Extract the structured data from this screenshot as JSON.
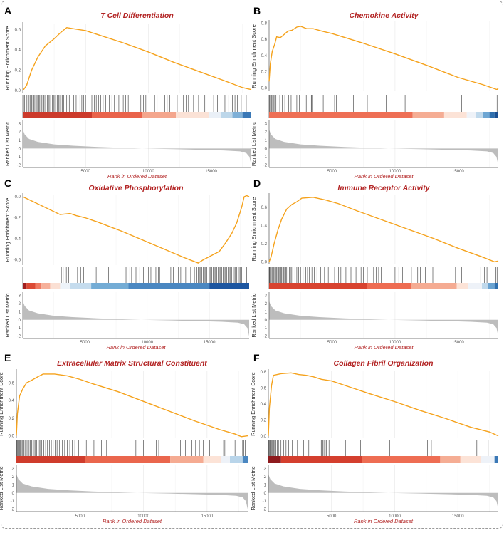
{
  "chart_data": [
    {
      "panel_label": "A",
      "type": "line",
      "title": "T Cell Differentiation",
      "xlabel": "Rank in Ordered Dataset",
      "ylabel": "Running Enrichment Score",
      "ylabel_metric": "Ranked List Metric",
      "xlim": [
        0,
        18200
      ],
      "xticks": [
        5000,
        10000,
        15000
      ],
      "ylim": [
        -0.02,
        0.66
      ],
      "yticks": [
        0.0,
        0.2,
        0.4,
        0.6
      ],
      "es_curve": [
        [
          0,
          0
        ],
        [
          300,
          0.05
        ],
        [
          700,
          0.2
        ],
        [
          1200,
          0.33
        ],
        [
          1800,
          0.44
        ],
        [
          2500,
          0.51
        ],
        [
          3000,
          0.57
        ],
        [
          3500,
          0.62
        ],
        [
          4000,
          0.61
        ],
        [
          5000,
          0.59
        ],
        [
          6000,
          0.55
        ],
        [
          8000,
          0.47
        ],
        [
          10000,
          0.38
        ],
        [
          12000,
          0.28
        ],
        [
          14000,
          0.19
        ],
        [
          16000,
          0.1
        ],
        [
          17500,
          0.03
        ],
        [
          18200,
          0.01
        ]
      ],
      "hits": [
        60,
        150,
        250,
        330,
        420,
        500,
        580,
        650,
        720,
        800,
        880,
        960,
        1050,
        1130,
        1200,
        1280,
        1350,
        1430,
        1520,
        1600,
        1680,
        1760,
        1850,
        1950,
        2050,
        2150,
        2250,
        2350,
        2450,
        2550,
        2650,
        2750,
        2850,
        2950,
        3050,
        3150,
        3250,
        3500,
        3700,
        4050,
        4250,
        4400,
        4550,
        4700,
        4850,
        5000,
        5200,
        5350,
        5500,
        5700,
        5850,
        6050,
        6200,
        6400,
        6600,
        6900,
        7100,
        7300,
        7500,
        7650,
        8000,
        8200,
        8400,
        9400,
        9500,
        9600,
        9800,
        10300,
        10500,
        10700,
        11300,
        11500,
        11700,
        12300,
        12800,
        13000,
        13200,
        13400,
        13600,
        14000,
        14500,
        15200,
        15500,
        15800,
        16100,
        16400,
        16700,
        16900,
        17100,
        17400,
        17800
      ],
      "color_bar": [
        [
          0,
          5500,
          "#cc3a2b"
        ],
        [
          5500,
          9500,
          "#e9634b"
        ],
        [
          9500,
          12200,
          "#f4a68d"
        ],
        [
          12200,
          14800,
          "#fbe2d6"
        ],
        [
          14800,
          15800,
          "#eaf0f7"
        ],
        [
          15800,
          16700,
          "#bdd7ea"
        ],
        [
          16700,
          17500,
          "#7fb0d7"
        ],
        [
          17500,
          18200,
          "#3a78b6"
        ]
      ]
    },
    {
      "panel_label": "B",
      "type": "line",
      "title": "Chemokine Activity",
      "xlabel": "Rank in Ordered Dataset",
      "ylabel": "Running Enrichment Score",
      "ylabel_metric": "Ranked List Metric",
      "xlim": [
        0,
        18200
      ],
      "xticks": [
        5000,
        10000,
        15000
      ],
      "ylim": [
        -0.04,
        0.82
      ],
      "yticks": [
        0.0,
        0.2,
        0.4,
        0.6,
        0.8
      ],
      "es_curve": [
        [
          0,
          0.08
        ],
        [
          100,
          0.3
        ],
        [
          250,
          0.45
        ],
        [
          450,
          0.54
        ],
        [
          600,
          0.63
        ],
        [
          900,
          0.62
        ],
        [
          1200,
          0.66
        ],
        [
          1500,
          0.7
        ],
        [
          1800,
          0.71
        ],
        [
          2200,
          0.75
        ],
        [
          2500,
          0.76
        ],
        [
          3000,
          0.73
        ],
        [
          3500,
          0.73
        ],
        [
          4200,
          0.7
        ],
        [
          5000,
          0.67
        ],
        [
          7500,
          0.55
        ],
        [
          10000,
          0.42
        ],
        [
          12500,
          0.28
        ],
        [
          15000,
          0.13
        ],
        [
          17000,
          0.04
        ],
        [
          18100,
          -0.02
        ],
        [
          18200,
          0.0
        ]
      ],
      "hits": [
        50,
        120,
        200,
        280,
        350,
        450,
        550,
        850,
        1050,
        1250,
        1550,
        1750,
        2200,
        2400,
        2950,
        3350,
        3400,
        4200,
        4300,
        4600,
        5200,
        5350,
        6700,
        7800,
        9300,
        10800,
        15300,
        18100
      ],
      "color_bar": [
        [
          0,
          11400,
          "#ee6f55"
        ],
        [
          11400,
          13900,
          "#f5ad94"
        ],
        [
          13900,
          15700,
          "#fce3d7"
        ],
        [
          15700,
          16400,
          "#eef2f8"
        ],
        [
          16400,
          17000,
          "#c0d9ec"
        ],
        [
          17000,
          17500,
          "#6da6d3"
        ],
        [
          17500,
          17900,
          "#2f6fae"
        ],
        [
          17900,
          18200,
          "#1a4f92"
        ]
      ]
    },
    {
      "panel_label": "C",
      "type": "line",
      "title": "Oxidative Phosphorylation",
      "xlabel": "Rank in Ordered Dataset",
      "ylabel": "Running Enrichment Score",
      "ylabel_metric": "Ranked List Metric",
      "xlim": [
        0,
        18200
      ],
      "xticks": [
        5000,
        10000,
        15000
      ],
      "ylim": [
        -0.65,
        0.02
      ],
      "yticks": [
        0.0,
        -0.2,
        -0.4,
        -0.6
      ],
      "es_curve": [
        [
          0,
          0
        ],
        [
          3000,
          -0.17
        ],
        [
          3800,
          -0.16
        ],
        [
          4300,
          -0.18
        ],
        [
          5000,
          -0.2
        ],
        [
          6000,
          -0.24
        ],
        [
          8000,
          -0.33
        ],
        [
          10000,
          -0.43
        ],
        [
          12000,
          -0.53
        ],
        [
          13000,
          -0.58
        ],
        [
          14100,
          -0.63
        ],
        [
          14500,
          -0.6
        ],
        [
          15000,
          -0.57
        ],
        [
          15800,
          -0.52
        ],
        [
          16300,
          -0.44
        ],
        [
          16800,
          -0.35
        ],
        [
          17200,
          -0.25
        ],
        [
          17600,
          -0.1
        ],
        [
          17800,
          0
        ],
        [
          18000,
          0.01
        ],
        [
          18200,
          0
        ]
      ],
      "hits": [
        3100,
        3250,
        3500,
        3700,
        3800,
        4400,
        4650,
        4900,
        5900,
        6900,
        8300,
        8600,
        8750,
        9100,
        9400,
        9700,
        10100,
        10300,
        10700,
        10900,
        11000,
        11200,
        11600,
        11900,
        12100,
        12400,
        12500,
        12700,
        13100,
        13500,
        13800,
        14000,
        14100,
        14200,
        14300,
        14400,
        14500,
        14600,
        14700,
        14800,
        15000,
        15100,
        15200,
        15300,
        15400,
        15500,
        15600,
        15700,
        15800,
        15900,
        16000,
        16100,
        16200,
        16300,
        16400,
        16500,
        16600,
        16700,
        16800,
        16900,
        17000,
        17100,
        17200,
        17300,
        17400,
        17500,
        17600,
        18000
      ],
      "color_bar": [
        [
          0,
          300,
          "#a01e1e"
        ],
        [
          300,
          1000,
          "#db4a35"
        ],
        [
          1000,
          1500,
          "#ef7b63"
        ],
        [
          1500,
          2200,
          "#f6b09a"
        ],
        [
          2200,
          3000,
          "#fbe0d4"
        ],
        [
          3000,
          3800,
          "#edf3f9"
        ],
        [
          3800,
          5500,
          "#c5dcee"
        ],
        [
          5500,
          8500,
          "#74acd5"
        ],
        [
          8500,
          15000,
          "#4a87c1"
        ],
        [
          15000,
          18200,
          "#1d56a0"
        ]
      ]
    },
    {
      "panel_label": "D",
      "type": "line",
      "title": "Immune Receptor Activity",
      "xlabel": "Rank in Ordered Dataset",
      "ylabel": "Running Enrichment Score",
      "ylabel_metric": "Ranked List Metric",
      "xlim": [
        0,
        18200
      ],
      "xticks": [
        5000,
        10000,
        15000
      ],
      "ylim": [
        -0.02,
        0.74
      ],
      "yticks": [
        0.0,
        0.2,
        0.4,
        0.6
      ],
      "es_curve": [
        [
          0,
          0
        ],
        [
          150,
          0.05
        ],
        [
          400,
          0.2
        ],
        [
          700,
          0.35
        ],
        [
          1000,
          0.47
        ],
        [
          1400,
          0.58
        ],
        [
          1800,
          0.63
        ],
        [
          2200,
          0.66
        ],
        [
          2600,
          0.7
        ],
        [
          3500,
          0.71
        ],
        [
          4500,
          0.68
        ],
        [
          5500,
          0.64
        ],
        [
          7000,
          0.56
        ],
        [
          9000,
          0.46
        ],
        [
          11000,
          0.36
        ],
        [
          13000,
          0.26
        ],
        [
          15000,
          0.15
        ],
        [
          17000,
          0.05
        ],
        [
          17900,
          0
        ],
        [
          18200,
          0.01
        ]
      ],
      "hits": [
        40,
        100,
        170,
        240,
        310,
        380,
        450,
        520,
        600,
        680,
        760,
        840,
        920,
        1000,
        1080,
        1160,
        1240,
        1320,
        1400,
        1500,
        1600,
        1700,
        1800,
        1900,
        2050,
        2200,
        2350,
        2500,
        2700,
        2900,
        3050,
        3200,
        3400,
        3600,
        3800,
        4100,
        4400,
        4700,
        5000,
        5200,
        5500,
        5700,
        6100,
        6500,
        6900,
        7300,
        7500,
        7800,
        8300,
        8500,
        8700,
        8900,
        10000,
        10300,
        10600,
        11300,
        11800,
        12000,
        12400,
        13000,
        14800,
        15300,
        15400,
        15800,
        16800,
        17100,
        17300,
        18000,
        18100
      ],
      "color_bar": [
        [
          0,
          7800,
          "#d8432f"
        ],
        [
          7800,
          11300,
          "#ee6c52"
        ],
        [
          11300,
          14900,
          "#f5ab92"
        ],
        [
          14900,
          15800,
          "#fce3d7"
        ],
        [
          15800,
          16900,
          "#eef2f8"
        ],
        [
          16900,
          17400,
          "#bfd8eb"
        ],
        [
          17400,
          17900,
          "#6aa3d1"
        ],
        [
          17900,
          18200,
          "#2f6fae"
        ]
      ]
    },
    {
      "panel_label": "E",
      "type": "line",
      "title": "Extracellular Matrix Structural Constituent",
      "xlabel": "Rank in Ordered Dataset",
      "ylabel": "Running Enrichment Score",
      "ylabel_metric": "Ranked List Metric",
      "xlim": [
        0,
        18200
      ],
      "xticks": [
        5000,
        10000,
        15000
      ],
      "ylim": [
        -0.02,
        0.74
      ],
      "yticks": [
        0.0,
        0.2,
        0.4,
        0.6
      ],
      "es_curve": [
        [
          0,
          0
        ],
        [
          80,
          0.25
        ],
        [
          250,
          0.45
        ],
        [
          500,
          0.53
        ],
        [
          800,
          0.6
        ],
        [
          1200,
          0.63
        ],
        [
          1700,
          0.67
        ],
        [
          2100,
          0.7
        ],
        [
          3000,
          0.7
        ],
        [
          4000,
          0.68
        ],
        [
          5000,
          0.64
        ],
        [
          6000,
          0.59
        ],
        [
          8000,
          0.5
        ],
        [
          10000,
          0.39
        ],
        [
          12000,
          0.28
        ],
        [
          14000,
          0.17
        ],
        [
          16000,
          0.07
        ],
        [
          17200,
          0.02
        ],
        [
          17700,
          -0.01
        ],
        [
          18200,
          0.0
        ]
      ],
      "hits": [
        30,
        80,
        140,
        200,
        260,
        320,
        390,
        460,
        530,
        600,
        680,
        760,
        840,
        920,
        1000,
        1100,
        1200,
        1300,
        1400,
        1500,
        1600,
        1700,
        1800,
        1900,
        2000,
        2150,
        2300,
        2450,
        2600,
        2750,
        2900,
        3050,
        3200,
        3400,
        3600,
        3800,
        4000,
        4200,
        4400,
        4600,
        4900,
        5500,
        5800,
        6100,
        6400,
        6700,
        7100,
        8700,
        9400,
        9500,
        10000,
        11000,
        11200,
        12400,
        12900,
        13300,
        13800,
        14100,
        14400,
        14700,
        15200,
        16300,
        16400,
        16500,
        17200,
        17800,
        17900,
        18000
      ],
      "color_bar": [
        [
          0,
          5400,
          "#cf3c2c"
        ],
        [
          5400,
          12100,
          "#ea664d"
        ],
        [
          12100,
          14700,
          "#f5ab92"
        ],
        [
          14700,
          16100,
          "#fce3d7"
        ],
        [
          16100,
          16800,
          "#eef2f8"
        ],
        [
          16800,
          17800,
          "#b9d5ea"
        ],
        [
          17800,
          18200,
          "#4a87c1"
        ]
      ]
    },
    {
      "panel_label": "F",
      "type": "line",
      "title": "Collagen Fibril Organization",
      "xlabel": "Rank in Ordered Dataset",
      "ylabel": "Running Enrichment Score",
      "ylabel_metric": "Ranked List Metric",
      "xlim": [
        0,
        18200
      ],
      "xticks": [
        5000,
        10000,
        15000
      ],
      "ylim": [
        -0.02,
        0.82
      ],
      "yticks": [
        0.0,
        0.2,
        0.4,
        0.6,
        0.8
      ],
      "es_curve": [
        [
          0,
          0
        ],
        [
          80,
          0.35
        ],
        [
          250,
          0.63
        ],
        [
          400,
          0.76
        ],
        [
          1000,
          0.78
        ],
        [
          1800,
          0.79
        ],
        [
          2400,
          0.77
        ],
        [
          3000,
          0.76
        ],
        [
          3600,
          0.74
        ],
        [
          4200,
          0.71
        ],
        [
          5000,
          0.69
        ],
        [
          6500,
          0.61
        ],
        [
          8000,
          0.53
        ],
        [
          10000,
          0.43
        ],
        [
          12000,
          0.32
        ],
        [
          14000,
          0.22
        ],
        [
          16000,
          0.11
        ],
        [
          17500,
          0.05
        ],
        [
          18200,
          0.0
        ]
      ],
      "hits": [
        30,
        80,
        130,
        180,
        230,
        290,
        350,
        420,
        500,
        600,
        700,
        800,
        1000,
        1200,
        1400,
        1600,
        1900,
        2300,
        2500,
        2800,
        3200,
        4100,
        4200,
        4300,
        4400,
        4500,
        4600,
        4800,
        6100,
        7300,
        9600,
        10900,
        12600,
        12900,
        13500,
        16200,
        16500,
        17400
      ],
      "color_bar": [
        [
          0,
          1000,
          "#8e1b1e"
        ],
        [
          1000,
          7400,
          "#d43f2e"
        ],
        [
          7400,
          13600,
          "#ee6d53"
        ],
        [
          13600,
          15200,
          "#f5ad94"
        ],
        [
          15200,
          16800,
          "#fce3d7"
        ],
        [
          16800,
          17900,
          "#eef2f8"
        ],
        [
          17900,
          18200,
          "#3a78b6"
        ]
      ]
    }
  ],
  "metric_curve": {
    "ylim": [
      -2.3,
      3.4
    ],
    "yticks": [
      -2,
      -1,
      0,
      1,
      2,
      3
    ],
    "points": [
      [
        0,
        2.3
      ],
      [
        150,
        1.7
      ],
      [
        500,
        1.15
      ],
      [
        1200,
        0.8
      ],
      [
        2500,
        0.5
      ],
      [
        4000,
        0.33
      ],
      [
        6000,
        0.18
      ],
      [
        8000,
        0.07
      ],
      [
        9500,
        0
      ],
      [
        12000,
        -0.08
      ],
      [
        14000,
        -0.15
      ],
      [
        16000,
        -0.24
      ],
      [
        17300,
        -0.35
      ],
      [
        17800,
        -0.55
      ],
      [
        18050,
        -1.0
      ],
      [
        18200,
        -2.0
      ]
    ]
  },
  "colors": {
    "es_line": "#f5a21c",
    "title": "#b22222",
    "metric_fill": "#bdbdbd",
    "hit": "#000000"
  }
}
